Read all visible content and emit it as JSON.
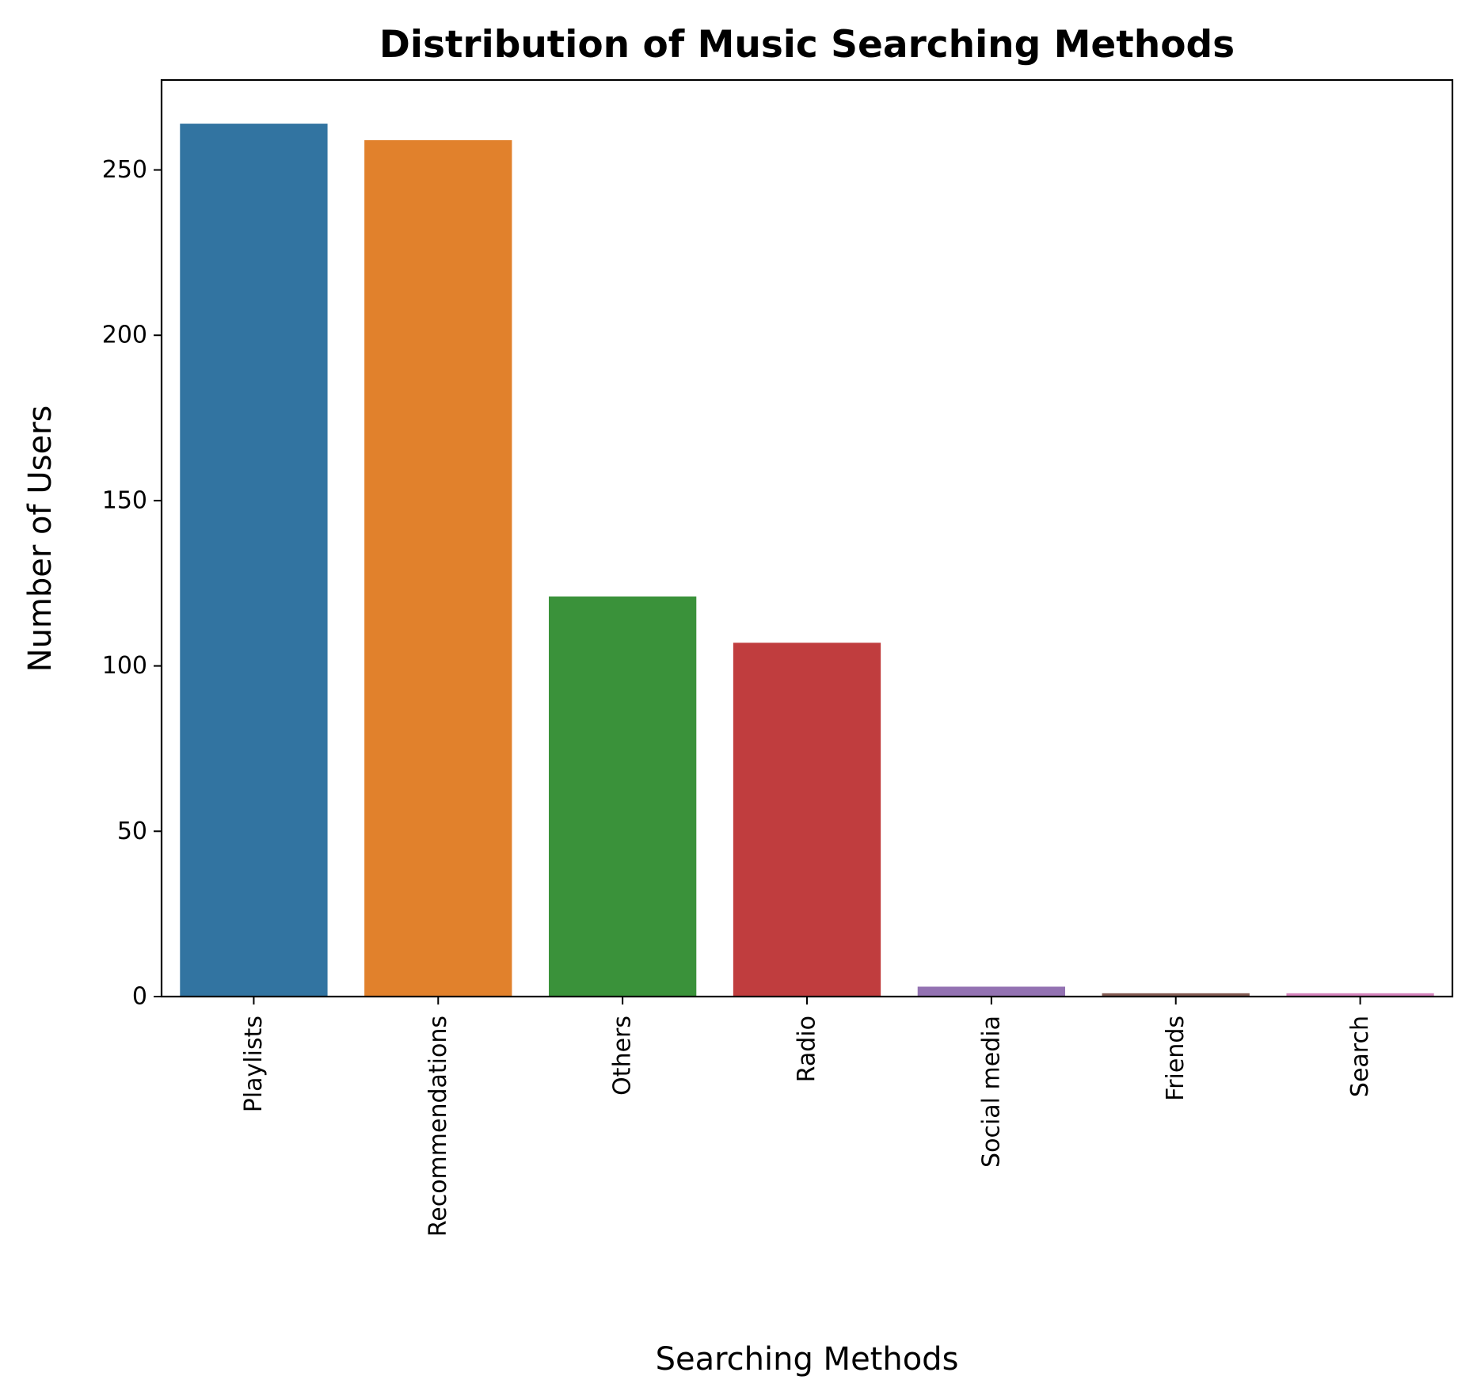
{
  "chart_data": {
    "type": "bar",
    "title": "Distribution of Music Searching Methods",
    "xlabel": "Searching Methods",
    "ylabel": "Number of Users",
    "categories": [
      "Playlists",
      "Recommendations",
      "Others",
      "Radio",
      "Social media",
      "Friends",
      "Search"
    ],
    "values": [
      264,
      259,
      121,
      107,
      3,
      1,
      1
    ],
    "colors": [
      "#3274a1",
      "#e1812c",
      "#3a923a",
      "#c03d3e",
      "#9372b2",
      "#845b53",
      "#d684bd"
    ],
    "ylim": [
      0,
      277.2
    ],
    "yticks": [
      0,
      50,
      100,
      150,
      200,
      250
    ],
    "grid": false,
    "legend": "none"
  }
}
